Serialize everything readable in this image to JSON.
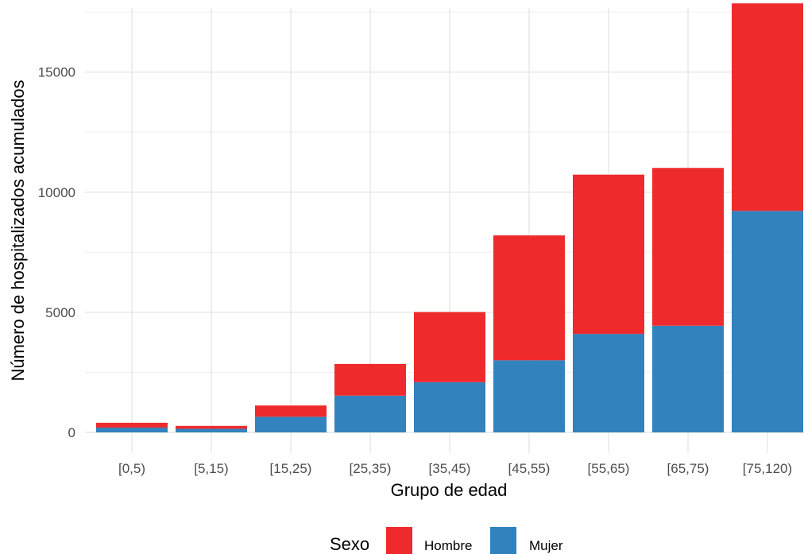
{
  "chart_data": {
    "type": "bar",
    "stacked": true,
    "xlabel": "Grupo de edad",
    "ylabel": "Número de hospitalizados acumulados",
    "categories": [
      "[0,5)",
      "[5,15)",
      "[15,25)",
      "[25,35)",
      "[35,45)",
      "[45,55)",
      "[55,65)",
      "[65,75)",
      "[75,120)"
    ],
    "series": [
      {
        "name": "Mujer",
        "color": "#3182BD",
        "values": [
          200,
          150,
          650,
          1530,
          2090,
          3000,
          4100,
          4440,
          9220
        ]
      },
      {
        "name": "Hombre",
        "color": "#EF2A2D",
        "values": [
          200,
          120,
          470,
          1320,
          2920,
          5200,
          6630,
          6570,
          8640
        ]
      }
    ],
    "ylim": [
      0,
      18000
    ],
    "yticks": [
      0,
      5000,
      10000,
      15000
    ],
    "ytick_labels": [
      "0",
      "5000",
      "10000",
      "15000"
    ],
    "grid": true,
    "legend": {
      "title": "Sexo",
      "position": "bottom",
      "entries": [
        {
          "label": "Hombre",
          "color": "#EF2A2D"
        },
        {
          "label": "Mujer",
          "color": "#3182BD"
        }
      ]
    }
  }
}
